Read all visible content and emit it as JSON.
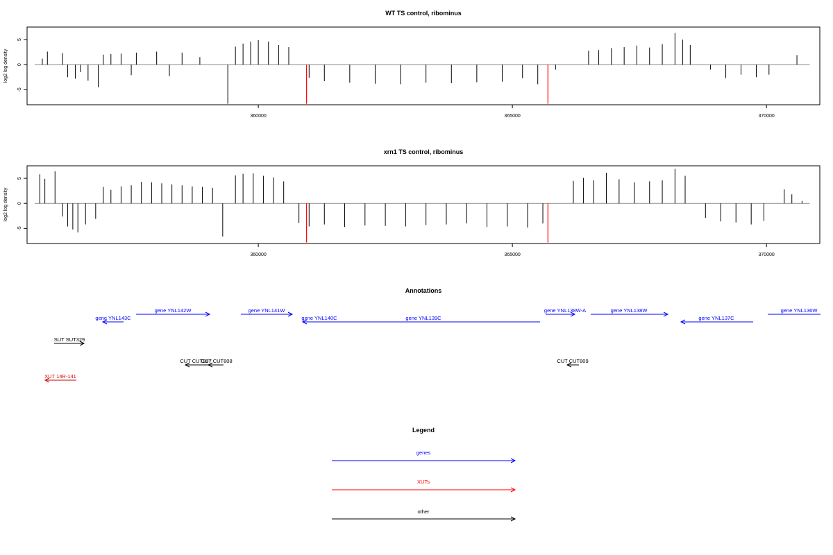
{
  "panels": [
    {
      "title": "WT TS control, ribominus",
      "ylabel": "log2 log density",
      "yticks": [
        5,
        0,
        -5
      ],
      "ylim": [
        -8,
        7.5
      ],
      "xlim": [
        355450,
        371050
      ],
      "xticks": [
        360000,
        365000,
        370000
      ],
      "xtick_labels": [
        "360000",
        "365000",
        "370000"
      ],
      "baseline_from": 355600,
      "baseline_to": 370850
    },
    {
      "title": "xrn1 TS control, ribominus",
      "ylabel": "log2 log density",
      "yticks": [
        5,
        0,
        -5
      ],
      "ylim": [
        -8,
        7.5
      ],
      "xlim": [
        355450,
        371050
      ],
      "xticks": [
        360000,
        365000,
        370000
      ],
      "xtick_labels": [
        "360000",
        "365000",
        "370000"
      ],
      "baseline_from": 355600,
      "baseline_to": 370850
    }
  ],
  "chart_data": [
    {
      "type": "bar",
      "title": "WT TS control, ribominus",
      "xlabel": "",
      "ylabel": "log2 log density",
      "xlim": [
        355450,
        371050
      ],
      "ylim": [
        -8,
        7.5
      ],
      "x": [
        355750,
        355850,
        356150,
        356250,
        356400,
        356500,
        356650,
        356850,
        356950,
        357100,
        357300,
        357500,
        357600,
        358000,
        358250,
        358500,
        358850,
        359400,
        359550,
        359700,
        359850,
        360000,
        360200,
        360400,
        360600,
        361000,
        361300,
        361800,
        362300,
        362800,
        363300,
        363800,
        364300,
        364800,
        365200,
        365500,
        365850,
        366500,
        366700,
        366950,
        367200,
        367450,
        367700,
        367950,
        368200,
        368350,
        368500,
        368900,
        369200,
        369500,
        369800,
        370050,
        370600
      ],
      "values": [
        1.2,
        2.6,
        2.3,
        -2.5,
        -2.8,
        -1.5,
        -3.2,
        -4.5,
        2.0,
        2.1,
        2.2,
        -2.1,
        2.4,
        2.6,
        -2.3,
        2.4,
        1.5,
        -7.8,
        3.6,
        4.2,
        4.6,
        4.9,
        4.6,
        3.9,
        3.5,
        -2.6,
        -3.3,
        -3.6,
        -3.8,
        -3.9,
        -3.6,
        -3.7,
        -3.5,
        -3.4,
        -2.7,
        -3.9,
        -1.0,
        2.8,
        2.9,
        3.3,
        3.5,
        3.8,
        3.4,
        4.1,
        6.3,
        5.0,
        3.9,
        -1.0,
        -2.7,
        -2.0,
        -2.5,
        -2.0,
        1.9
      ],
      "highlighted_x": [
        360950,
        365700
      ],
      "highlighted_values": [
        -7.8,
        -7.8
      ],
      "highlight_color": "#ff0000"
    },
    {
      "type": "bar",
      "title": "xrn1 TS control, ribominus",
      "xlabel": "",
      "ylabel": "log2 log density",
      "xlim": [
        355450,
        371050
      ],
      "ylim": [
        -8,
        7.5
      ],
      "x": [
        355700,
        355800,
        356000,
        356150,
        356250,
        356350,
        356450,
        356600,
        356800,
        356950,
        357100,
        357300,
        357500,
        357700,
        357900,
        358100,
        358300,
        358500,
        358700,
        358900,
        359100,
        359300,
        359550,
        359700,
        359900,
        360100,
        360300,
        360500,
        360800,
        361000,
        361300,
        361700,
        362100,
        362500,
        362900,
        363300,
        363700,
        364100,
        364500,
        364900,
        365300,
        365600,
        366200,
        366400,
        366600,
        366850,
        367100,
        367400,
        367700,
        367950,
        368200,
        368400,
        368800,
        369100,
        369400,
        369700,
        369950,
        370350,
        370500,
        370700
      ],
      "values": [
        5.8,
        4.9,
        6.4,
        -2.6,
        -4.6,
        -5.2,
        -5.8,
        -4.2,
        -3.1,
        3.3,
        2.7,
        3.4,
        3.6,
        4.3,
        4.2,
        4.0,
        3.8,
        3.6,
        3.4,
        3.3,
        3.1,
        -6.6,
        5.6,
        5.9,
        6.0,
        5.5,
        5.2,
        4.4,
        -3.9,
        -4.6,
        -4.2,
        -4.7,
        -4.4,
        -4.5,
        -4.6,
        -4.3,
        -4.2,
        -4.0,
        -4.7,
        -4.6,
        -4.8,
        -4.0,
        4.5,
        5.1,
        4.6,
        6.1,
        4.8,
        4.2,
        4.4,
        4.6,
        6.9,
        5.5,
        -2.9,
        -3.6,
        -3.8,
        -4.2,
        -3.5,
        2.8,
        1.8,
        0.5
      ],
      "highlighted_x": [
        360950,
        365700
      ],
      "highlighted_values": [
        -7.8,
        -7.8
      ],
      "highlight_color": "#ff0000"
    }
  ],
  "annotations": {
    "title": "Annotations",
    "items": [
      {
        "label": "gene YNL143C",
        "color": "#0000ff"
      },
      {
        "label": "gene YNL142W",
        "color": "#0000ff"
      },
      {
        "label": "gene YNL141W",
        "color": "#0000ff"
      },
      {
        "label": "gene YNL140C",
        "color": "#0000ff"
      },
      {
        "label": "gene YNL139C",
        "color": "#0000ff"
      },
      {
        "label": "gene YNL138W-A",
        "color": "#0000ff"
      },
      {
        "label": "gene YNL138W",
        "color": "#0000ff"
      },
      {
        "label": "gene YNL137C",
        "color": "#0000ff"
      },
      {
        "label": "gene YNL136W",
        "color": "#0000ff"
      },
      {
        "label": "SUT SUT329",
        "color": "#000000"
      },
      {
        "label": "CUT CUT807",
        "color": "#000000"
      },
      {
        "label": "CUT CUT808",
        "color": "#000000"
      },
      {
        "label": "CUT CUT809",
        "color": "#000000"
      },
      {
        "label": "XUT 14R-141",
        "color": "#cc0000"
      }
    ]
  },
  "legend": {
    "title": "Legend",
    "entries": [
      {
        "label": "genes",
        "color": "#0000ff"
      },
      {
        "label": "XUTs",
        "color": "#ff0000"
      },
      {
        "label": "other",
        "color": "#000000"
      }
    ]
  },
  "colors": {
    "bar": "#000000",
    "highlight": "#ff0000",
    "baseline": "#888888",
    "gene": "#0000ff",
    "xut": "#cc0000",
    "other": "#000000"
  }
}
